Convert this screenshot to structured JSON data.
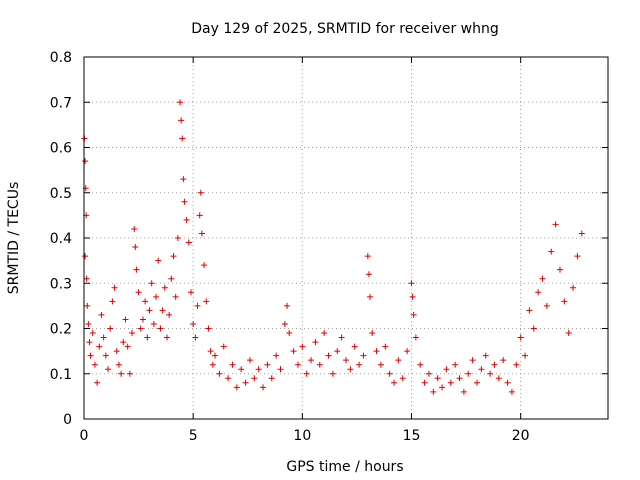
{
  "chart_data": {
    "type": "scatter",
    "title": "Day 129 of 2025, SRMTID for receiver whng",
    "xlabel": "GPS time / hours",
    "ylabel": "SRMTID / TECUs",
    "xlim": [
      0,
      24
    ],
    "ylim": [
      0,
      0.8
    ],
    "x_ticks": [
      0,
      5,
      10,
      15,
      20
    ],
    "x_tick_labels": [
      "0",
      "5",
      "10",
      "15",
      "20"
    ],
    "y_ticks": [
      0,
      0.1,
      0.2,
      0.3,
      0.4,
      0.5,
      0.6,
      0.7,
      0.8
    ],
    "y_tick_labels": [
      "0",
      "0.1",
      "0.2",
      "0.3",
      "0.4",
      "0.5",
      "0.6",
      "0.7",
      "0.8"
    ],
    "grid": true,
    "legend": "none",
    "marker": "+",
    "color": "#e00000",
    "series": [
      {
        "name": "SRMTID",
        "points": [
          [
            0.02,
            0.62
          ],
          [
            0.05,
            0.57
          ],
          [
            0.08,
            0.51
          ],
          [
            0.1,
            0.45
          ],
          [
            0.05,
            0.36
          ],
          [
            0.12,
            0.31
          ],
          [
            0.15,
            0.25
          ],
          [
            0.2,
            0.21
          ],
          [
            0.25,
            0.17
          ],
          [
            0.3,
            0.14
          ],
          [
            0.4,
            0.19
          ],
          [
            0.5,
            0.12
          ],
          [
            0.6,
            0.08
          ],
          [
            0.7,
            0.16
          ],
          [
            0.8,
            0.23
          ],
          [
            0.9,
            0.18
          ],
          [
            1.0,
            0.14
          ],
          [
            1.1,
            0.11
          ],
          [
            1.2,
            0.2
          ],
          [
            1.3,
            0.26
          ],
          [
            1.4,
            0.29
          ],
          [
            1.5,
            0.15
          ],
          [
            1.6,
            0.12
          ],
          [
            1.7,
            0.1
          ],
          [
            1.8,
            0.17
          ],
          [
            1.9,
            0.22
          ],
          [
            2.0,
            0.16
          ],
          [
            2.1,
            0.1
          ],
          [
            2.2,
            0.19
          ],
          [
            2.3,
            0.42
          ],
          [
            2.35,
            0.38
          ],
          [
            2.4,
            0.33
          ],
          [
            2.5,
            0.28
          ],
          [
            2.6,
            0.2
          ],
          [
            2.7,
            0.22
          ],
          [
            2.8,
            0.26
          ],
          [
            2.9,
            0.18
          ],
          [
            3.0,
            0.24
          ],
          [
            3.1,
            0.3
          ],
          [
            3.2,
            0.21
          ],
          [
            3.3,
            0.27
          ],
          [
            3.4,
            0.35
          ],
          [
            3.5,
            0.2
          ],
          [
            3.6,
            0.24
          ],
          [
            3.7,
            0.29
          ],
          [
            3.8,
            0.18
          ],
          [
            3.9,
            0.23
          ],
          [
            4.0,
            0.31
          ],
          [
            4.1,
            0.36
          ],
          [
            4.2,
            0.27
          ],
          [
            4.3,
            0.4
          ],
          [
            4.4,
            0.7
          ],
          [
            4.45,
            0.66
          ],
          [
            4.5,
            0.62
          ],
          [
            4.55,
            0.53
          ],
          [
            4.6,
            0.48
          ],
          [
            4.7,
            0.44
          ],
          [
            4.8,
            0.39
          ],
          [
            4.9,
            0.28
          ],
          [
            5.0,
            0.21
          ],
          [
            5.1,
            0.18
          ],
          [
            5.2,
            0.25
          ],
          [
            5.3,
            0.45
          ],
          [
            5.35,
            0.5
          ],
          [
            5.4,
            0.41
          ],
          [
            5.5,
            0.34
          ],
          [
            5.6,
            0.26
          ],
          [
            5.7,
            0.2
          ],
          [
            5.8,
            0.15
          ],
          [
            5.9,
            0.12
          ],
          [
            6.0,
            0.14
          ],
          [
            6.2,
            0.1
          ],
          [
            6.4,
            0.16
          ],
          [
            6.6,
            0.09
          ],
          [
            6.8,
            0.12
          ],
          [
            7.0,
            0.07
          ],
          [
            7.2,
            0.11
          ],
          [
            7.4,
            0.08
          ],
          [
            7.6,
            0.13
          ],
          [
            7.8,
            0.09
          ],
          [
            8.0,
            0.11
          ],
          [
            8.2,
            0.07
          ],
          [
            8.4,
            0.12
          ],
          [
            8.6,
            0.09
          ],
          [
            8.8,
            0.14
          ],
          [
            9.0,
            0.11
          ],
          [
            9.2,
            0.21
          ],
          [
            9.3,
            0.25
          ],
          [
            9.4,
            0.19
          ],
          [
            9.6,
            0.15
          ],
          [
            9.8,
            0.12
          ],
          [
            10.0,
            0.16
          ],
          [
            10.2,
            0.1
          ],
          [
            10.4,
            0.13
          ],
          [
            10.6,
            0.17
          ],
          [
            10.8,
            0.12
          ],
          [
            11.0,
            0.19
          ],
          [
            11.2,
            0.14
          ],
          [
            11.4,
            0.1
          ],
          [
            11.6,
            0.15
          ],
          [
            11.8,
            0.18
          ],
          [
            12.0,
            0.13
          ],
          [
            12.2,
            0.11
          ],
          [
            12.4,
            0.16
          ],
          [
            12.6,
            0.12
          ],
          [
            12.8,
            0.14
          ],
          [
            13.0,
            0.36
          ],
          [
            13.05,
            0.32
          ],
          [
            13.1,
            0.27
          ],
          [
            13.2,
            0.19
          ],
          [
            13.4,
            0.15
          ],
          [
            13.6,
            0.12
          ],
          [
            13.8,
            0.16
          ],
          [
            14.0,
            0.1
          ],
          [
            14.2,
            0.08
          ],
          [
            14.4,
            0.13
          ],
          [
            14.6,
            0.09
          ],
          [
            14.8,
            0.15
          ],
          [
            15.0,
            0.3
          ],
          [
            15.05,
            0.27
          ],
          [
            15.1,
            0.23
          ],
          [
            15.2,
            0.18
          ],
          [
            15.4,
            0.12
          ],
          [
            15.6,
            0.08
          ],
          [
            15.8,
            0.1
          ],
          [
            16.0,
            0.06
          ],
          [
            16.2,
            0.09
          ],
          [
            16.4,
            0.07
          ],
          [
            16.6,
            0.11
          ],
          [
            16.8,
            0.08
          ],
          [
            17.0,
            0.12
          ],
          [
            17.2,
            0.09
          ],
          [
            17.4,
            0.06
          ],
          [
            17.6,
            0.1
          ],
          [
            17.8,
            0.13
          ],
          [
            18.0,
            0.08
          ],
          [
            18.2,
            0.11
          ],
          [
            18.4,
            0.14
          ],
          [
            18.6,
            0.1
          ],
          [
            18.8,
            0.12
          ],
          [
            19.0,
            0.09
          ],
          [
            19.2,
            0.13
          ],
          [
            19.4,
            0.08
          ],
          [
            19.6,
            0.06
          ],
          [
            19.8,
            0.12
          ],
          [
            20.0,
            0.18
          ],
          [
            20.2,
            0.14
          ],
          [
            20.4,
            0.24
          ],
          [
            20.6,
            0.2
          ],
          [
            20.8,
            0.28
          ],
          [
            21.0,
            0.31
          ],
          [
            21.2,
            0.25
          ],
          [
            21.4,
            0.37
          ],
          [
            21.6,
            0.43
          ],
          [
            21.8,
            0.33
          ],
          [
            22.0,
            0.26
          ],
          [
            22.2,
            0.19
          ],
          [
            22.4,
            0.29
          ],
          [
            22.6,
            0.36
          ],
          [
            22.8,
            0.41
          ]
        ]
      }
    ]
  }
}
